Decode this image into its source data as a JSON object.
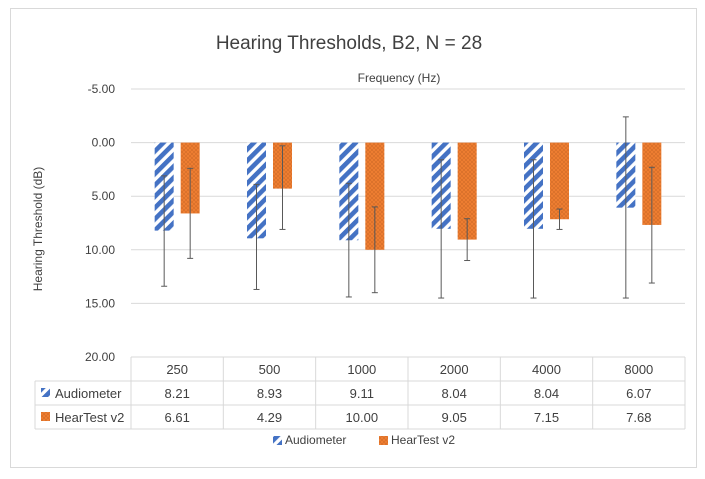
{
  "chart_data": {
    "type": "bar",
    "title": "Hearing Thresholds, B2,  N = 28",
    "xlabel": "Frequency (Hz)",
    "ylabel": "Hearing Threshold (dB)",
    "y_reversed": true,
    "ylim": [
      -5,
      20
    ],
    "y_ticks": [
      "-5.00",
      "0.00",
      "5.00",
      "10.00",
      "15.00",
      "20.00"
    ],
    "categories": [
      "250",
      "500",
      "1000",
      "2000",
      "4000",
      "8000"
    ],
    "gridlines": true,
    "legend_position": "bottom",
    "data_table": true,
    "series": [
      {
        "name": "Audiometer",
        "color": "#4472c4",
        "pattern": "diagonal-stripes",
        "values": [
          8.21,
          8.93,
          9.11,
          8.04,
          8.04,
          6.07
        ],
        "value_labels": [
          "8.21",
          "8.93",
          "9.11",
          "8.04",
          "8.04",
          "6.07"
        ],
        "error_low": [
          3.1,
          3.9,
          3.8,
          1.6,
          1.6,
          -2.4
        ],
        "error_high": [
          13.4,
          13.7,
          14.4,
          14.5,
          14.5,
          14.5
        ]
      },
      {
        "name": "HearTest v2",
        "color": "#ed7d31",
        "pattern": "dots",
        "values": [
          6.61,
          4.29,
          10.0,
          9.05,
          7.15,
          7.68
        ],
        "value_labels": [
          "6.61",
          "4.29",
          "10.00",
          "9.05",
          "7.15",
          "7.68"
        ],
        "error_low": [
          2.4,
          0.3,
          6.0,
          7.1,
          6.2,
          2.3
        ],
        "error_high": [
          10.8,
          8.1,
          14.0,
          11.0,
          8.1,
          13.1
        ]
      }
    ]
  }
}
